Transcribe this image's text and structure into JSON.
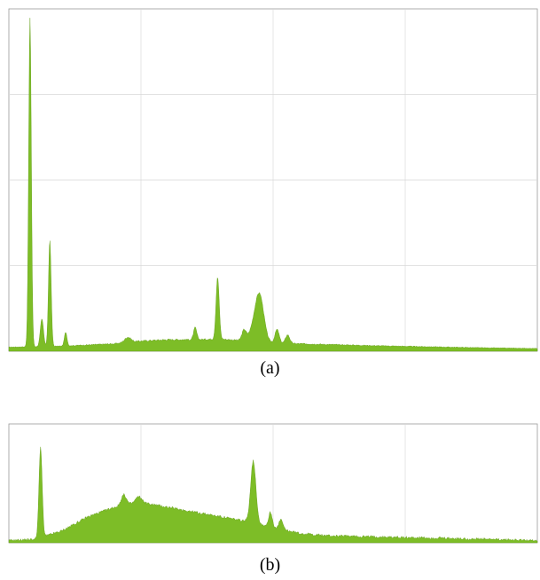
{
  "captions": {
    "a": "(a)",
    "b": "(b)"
  },
  "colors": {
    "fill": "#7dbd27",
    "stroke": "#5e9a12",
    "grid": "#d9d9d9",
    "frame": "#9a9a9a"
  },
  "chart_data": [
    {
      "type": "area",
      "panel": "a",
      "title": "",
      "xlabel": "",
      "ylabel": "",
      "xlim": [
        0,
        20
      ],
      "ylim": [
        0,
        100
      ],
      "grid": true,
      "baseline": [
        [
          0,
          1.2
        ],
        [
          2,
          1.5
        ],
        [
          4,
          2.2
        ],
        [
          5,
          3.0
        ],
        [
          6,
          3.4
        ],
        [
          7,
          3.4
        ],
        [
          8,
          3.6
        ],
        [
          9,
          3.0
        ],
        [
          10,
          2.4
        ],
        [
          12,
          2.0
        ],
        [
          14,
          1.6
        ],
        [
          16,
          1.3
        ],
        [
          18,
          1.0
        ],
        [
          20,
          0.8
        ]
      ],
      "peaks": [
        {
          "x": 0.8,
          "h": 96,
          "w": 0.05
        },
        {
          "x": 1.25,
          "h": 8,
          "w": 0.06
        },
        {
          "x": 1.55,
          "h": 31,
          "w": 0.05
        },
        {
          "x": 2.15,
          "h": 4,
          "w": 0.05
        },
        {
          "x": 4.5,
          "h": 1.5,
          "w": 0.12
        },
        {
          "x": 7.05,
          "h": 3.5,
          "w": 0.06
        },
        {
          "x": 7.9,
          "h": 18,
          "w": 0.06
        },
        {
          "x": 8.9,
          "h": 3,
          "w": 0.08
        },
        {
          "x": 9.5,
          "h": 12,
          "w": 0.16
        },
        {
          "x": 9.3,
          "h": 4,
          "w": 0.18
        },
        {
          "x": 10.15,
          "h": 4,
          "w": 0.08
        },
        {
          "x": 10.55,
          "h": 2.5,
          "w": 0.08
        }
      ]
    },
    {
      "type": "area",
      "panel": "b",
      "title": "",
      "xlabel": "",
      "ylabel": "",
      "xlim": [
        0,
        20
      ],
      "ylim": [
        0,
        100
      ],
      "grid": true,
      "baseline": [
        [
          0,
          2
        ],
        [
          1,
          3
        ],
        [
          2,
          10
        ],
        [
          3,
          22
        ],
        [
          4,
          30
        ],
        [
          5,
          34
        ],
        [
          6,
          30
        ],
        [
          7,
          26
        ],
        [
          8,
          22
        ],
        [
          9,
          18
        ],
        [
          10,
          13
        ],
        [
          11,
          8
        ],
        [
          12,
          6
        ],
        [
          14,
          5
        ],
        [
          16,
          4
        ],
        [
          18,
          3
        ],
        [
          20,
          2
        ]
      ],
      "peaks": [
        {
          "x": 1.2,
          "h": 76,
          "w": 0.06
        },
        {
          "x": 4.35,
          "h": 9,
          "w": 0.1
        },
        {
          "x": 4.9,
          "h": 5,
          "w": 0.12
        },
        {
          "x": 9.25,
          "h": 52,
          "w": 0.1
        },
        {
          "x": 9.9,
          "h": 12,
          "w": 0.07
        },
        {
          "x": 10.3,
          "h": 8,
          "w": 0.07
        }
      ]
    }
  ]
}
